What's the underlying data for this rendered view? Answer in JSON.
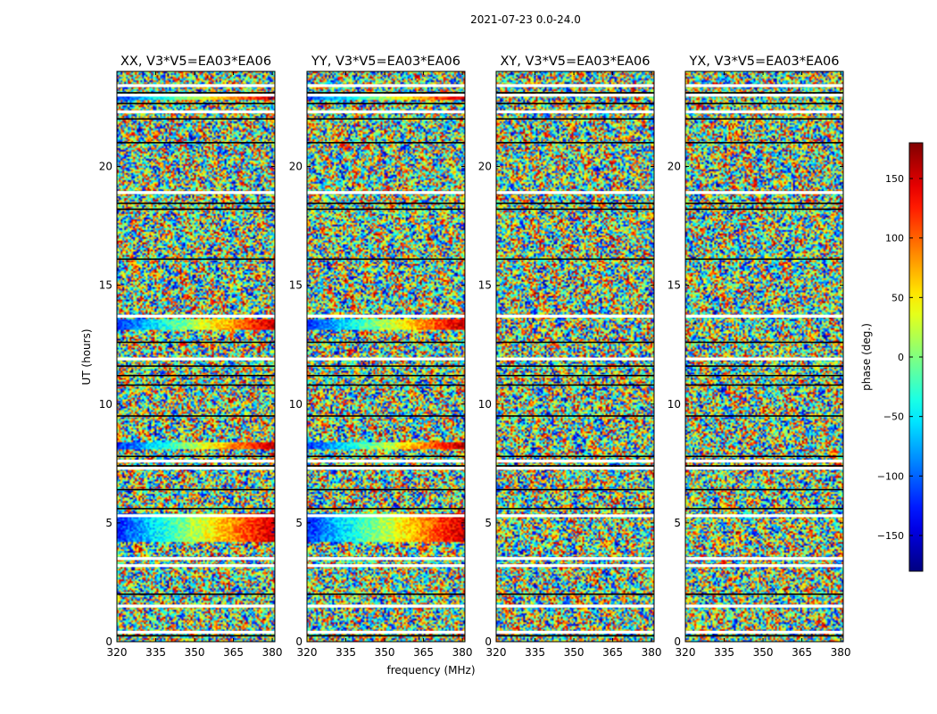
{
  "chart_data": {
    "type": "heatmap",
    "suptitle": "2021-07-23 0.0-24.0",
    "xlabel": "frequency (MHz)",
    "ylabel": "UT (hours)",
    "xlim": [
      320,
      381
    ],
    "ylim": [
      0,
      24
    ],
    "xticks": [
      320,
      335,
      350,
      365,
      380
    ],
    "yticks": [
      0,
      5,
      10,
      15,
      20
    ],
    "panels": [
      {
        "title": "XX, V3*V5=EA03*EA06",
        "coherent_bands": [
          [
            8.1,
            8.4
          ],
          [
            13.1,
            13.55
          ],
          [
            4.2,
            5.4
          ],
          [
            22.8,
            23.0
          ]
        ]
      },
      {
        "title": "YY, V3*V5=EA03*EA06",
        "coherent_bands": [
          [
            8.1,
            8.4
          ],
          [
            13.1,
            13.55
          ],
          [
            4.2,
            5.4
          ],
          [
            22.8,
            23.0
          ]
        ]
      },
      {
        "title": "XY, V3*V5=EA03*EA06",
        "coherent_bands": []
      },
      {
        "title": "YX, V3*V5=EA03*EA06",
        "coherent_bands": []
      }
    ],
    "flagged_rows_white": [
      0.4,
      1.5,
      3.2,
      3.5,
      5.3,
      7.3,
      7.6,
      11.9,
      13.7,
      18.9,
      22.3,
      23.0,
      23.4
    ],
    "flagged_rows_black": [
      0.25,
      2.0,
      5.6,
      6.4,
      7.4,
      7.8,
      9.5,
      10.8,
      11.2,
      11.6,
      12.6,
      16.1,
      18.2,
      18.45,
      21.0,
      22.0,
      22.65,
      23.1
    ],
    "colorbar": {
      "label": "phase (deg.)",
      "range": [
        -180,
        180
      ],
      "ticks": [
        -150,
        -100,
        -50,
        0,
        50,
        100,
        150
      ],
      "colormap": "jet"
    }
  }
}
